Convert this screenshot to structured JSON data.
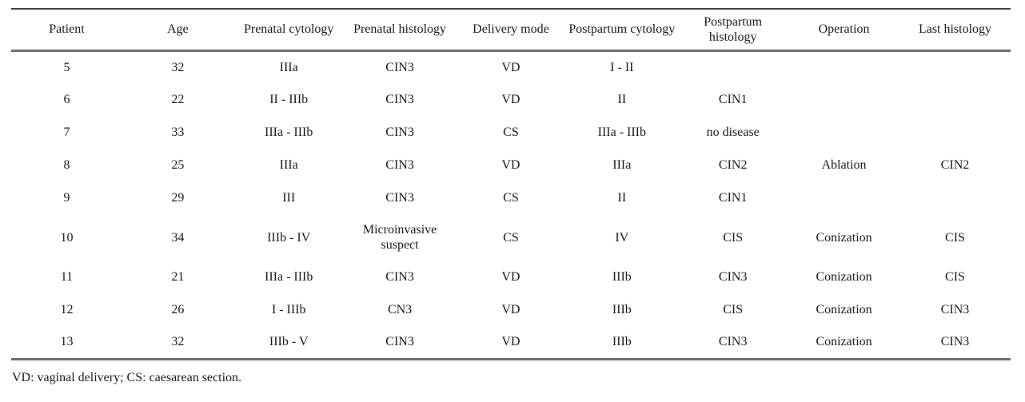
{
  "table": {
    "columns": [
      "Patient",
      "Age",
      "Prenatal cytology",
      "Prenatal histology",
      "Delivery mode",
      "Postpartum cytology",
      "Postpartum histology",
      "Operation",
      "Last histology"
    ],
    "rows": [
      [
        "5",
        "32",
        "IIIa",
        "CIN3",
        "VD",
        "I - II",
        "",
        "",
        ""
      ],
      [
        "6",
        "22",
        "II - IIIb",
        "CIN3",
        "VD",
        "II",
        "CIN1",
        "",
        ""
      ],
      [
        "7",
        "33",
        "IIIa - IIIb",
        "CIN3",
        "CS",
        "IIIa - IIIb",
        "no disease",
        "",
        ""
      ],
      [
        "8",
        "25",
        "IIIa",
        "CIN3",
        "VD",
        "IIIa",
        "CIN2",
        "Ablation",
        "CIN2"
      ],
      [
        "9",
        "29",
        "III",
        "CIN3",
        "CS",
        "II",
        "CIN1",
        "",
        ""
      ],
      [
        "10",
        "34",
        "IIIb - IV",
        "Microinvasive suspect",
        "CS",
        "IV",
        "CIS",
        "Conization",
        "CIS"
      ],
      [
        "11",
        "21",
        "IIIa - IIIb",
        "CIN3",
        "VD",
        "IIIb",
        "CIN3",
        "Conization",
        "CIS"
      ],
      [
        "12",
        "26",
        "I - IIIb",
        "CN3",
        "VD",
        "IIIb",
        "CIS",
        "Conization",
        "CIN3"
      ],
      [
        "13",
        "32",
        "IIIb - V",
        "CIN3",
        "VD",
        "IIIb",
        "CIN3",
        "Conization",
        "CIN3"
      ]
    ],
    "tall_row_index": 5
  },
  "footnote": "VD: vaginal delivery; CS: caesarean section.",
  "colors": {
    "text": "#1b1b1b",
    "top_rule": "#414141",
    "header_rule": "#6e6e6e",
    "bottom_rule": "#6e6e6e",
    "background": "#ffffff"
  }
}
